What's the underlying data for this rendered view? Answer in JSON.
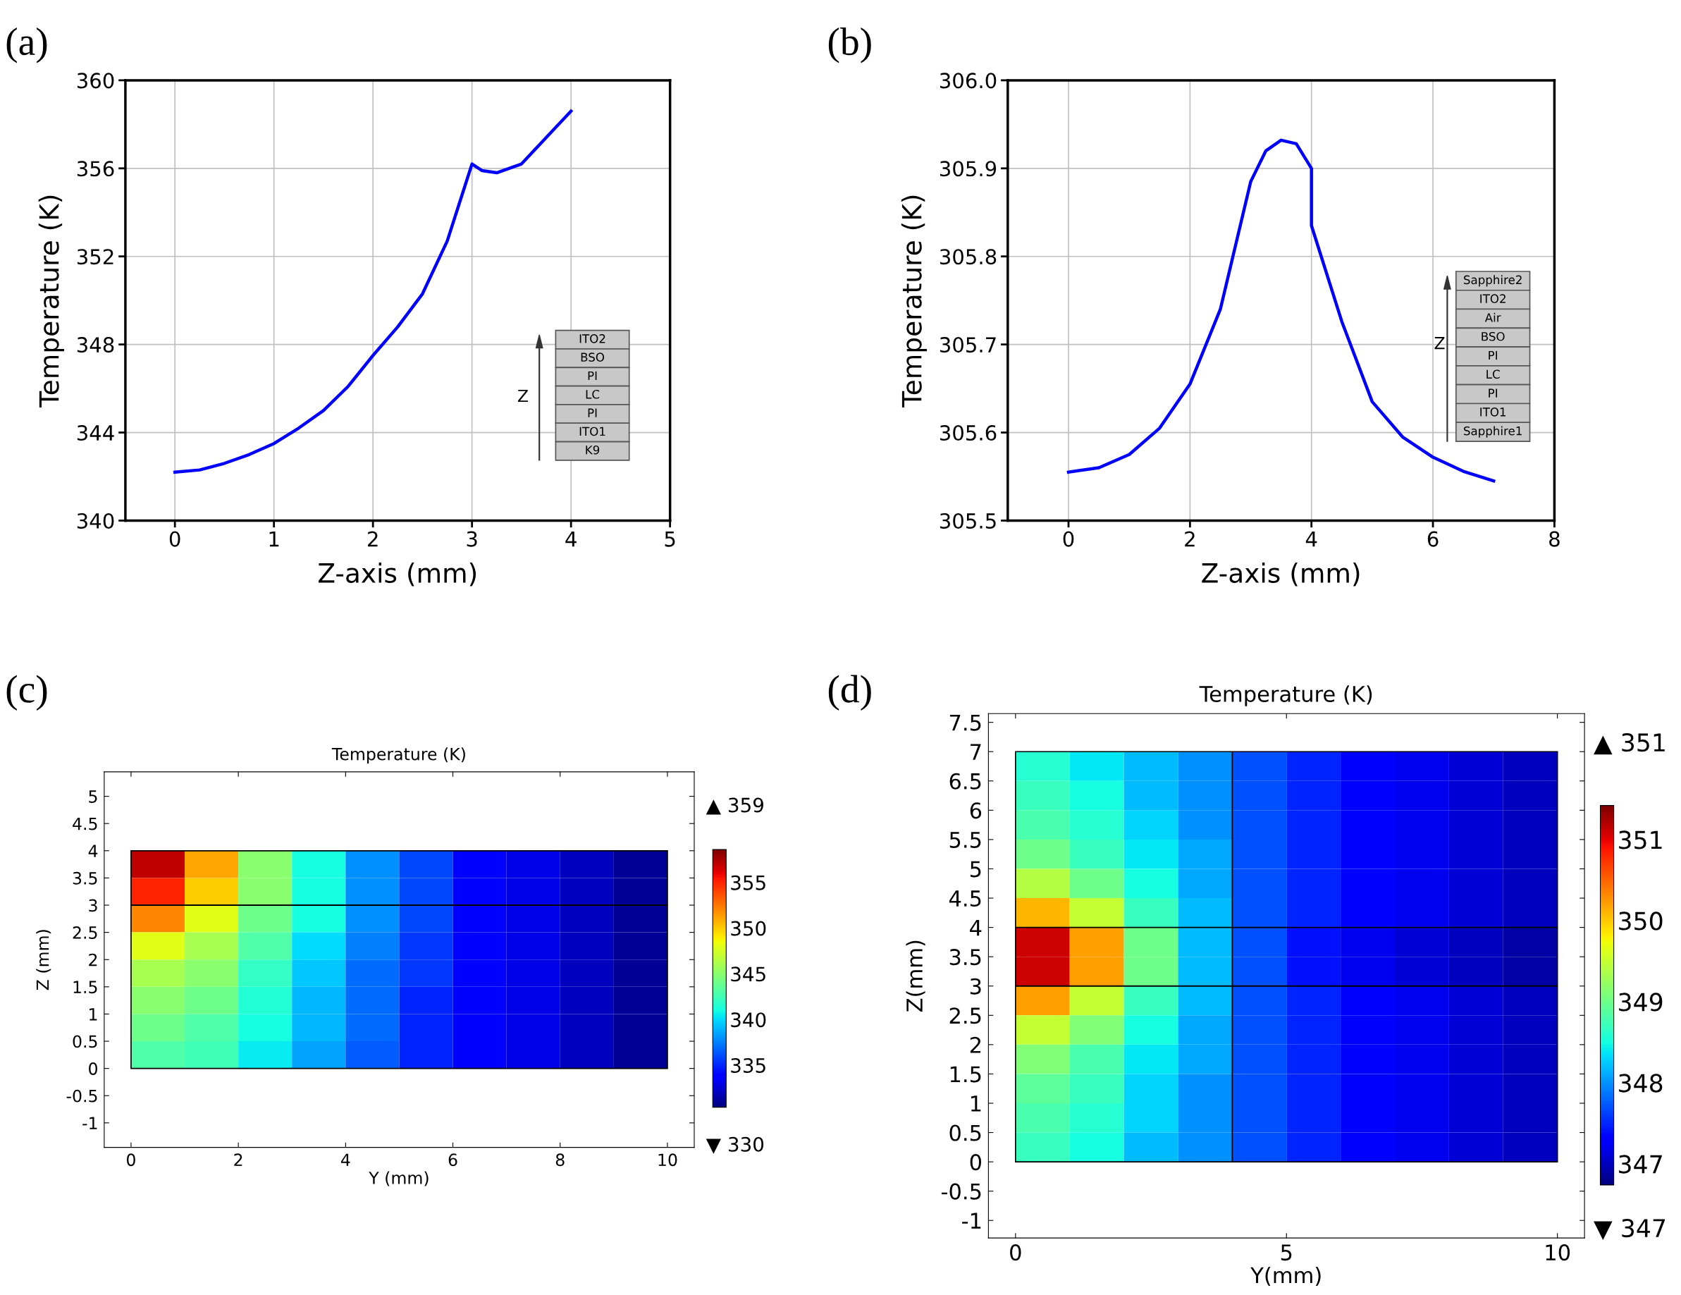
{
  "chart_data": [
    {
      "type": "line",
      "xlabel": "Z-axis (mm)",
      "ylabel": "Temperature (K)",
      "xlim": [
        -0.5,
        5
      ],
      "ylim": [
        340,
        360
      ],
      "xticks": [
        0,
        1,
        2,
        3,
        4,
        5
      ],
      "yticks": [
        340,
        344,
        348,
        352,
        356,
        360
      ],
      "grid": true,
      "legend": false,
      "marker": "none",
      "line_style": "solid",
      "annotations": [
        "(a)",
        "Z",
        "ITO2",
        "BSO",
        "PI",
        "LC",
        "PI",
        "ITO1",
        "K9"
      ],
      "series": [
        {
          "color": "#0000ff",
          "x": [
            0,
            0.25,
            0.5,
            0.75,
            1,
            1.25,
            1.5,
            1.75,
            2,
            2.25,
            2.5,
            2.75,
            3,
            3.1,
            3.25,
            3.5,
            3.75,
            4
          ],
          "values": [
            342.2,
            342.3,
            342.6,
            343.0,
            343.5,
            344.2,
            345.0,
            346.1,
            347.5,
            348.8,
            350.3,
            352.7,
            356.2,
            355.9,
            355.8,
            356.2,
            357.4,
            358.6
          ]
        }
      ]
    },
    {
      "type": "line",
      "xlabel": "Z-axis (mm)",
      "ylabel": "Temperature (K)",
      "xlim": [
        -1,
        8
      ],
      "ylim": [
        305.5,
        306.0
      ],
      "xticks": [
        0,
        2,
        4,
        6,
        8
      ],
      "yticks": [
        305.5,
        305.6,
        305.7,
        305.8,
        305.9,
        {
          "value": 306,
          "label": "306.0"
        }
      ],
      "grid": true,
      "legend": false,
      "marker": "none",
      "line_style": "solid",
      "annotations": [
        "(b)",
        "Z",
        "Sapphire2",
        "ITO2",
        "Air",
        "BSO",
        "PI",
        "LC",
        "PI",
        "ITO1",
        "Sapphire1"
      ],
      "series": [
        {
          "color": "#0000ff",
          "x": [
            0,
            0.5,
            1,
            1.5,
            2,
            2.5,
            3,
            3.25,
            3.5,
            3.75,
            4,
            4,
            4.5,
            5,
            5.5,
            6,
            6.5,
            7
          ],
          "values": [
            305.555,
            305.56,
            305.575,
            305.605,
            305.655,
            305.74,
            305.885,
            305.92,
            305.932,
            305.928,
            305.9,
            305.835,
            305.726,
            305.635,
            305.595,
            305.572,
            305.556,
            305.545
          ]
        }
      ]
    },
    {
      "type": "heatmap",
      "title": "Temperature (K)",
      "xlabel": "Y (mm)",
      "ylabel": "Z (mm)",
      "xlim": [
        -0.5,
        10.5
      ],
      "ylim": [
        -1.45,
        5.45
      ],
      "xticks": [
        0,
        2,
        4,
        6,
        8,
        10
      ],
      "yticks": [
        -1,
        -0.5,
        0,
        0.5,
        1,
        1.5,
        2,
        2.5,
        3,
        3.5,
        4,
        4.5,
        5
      ],
      "clim": [
        330.4,
        358.6
      ],
      "cticks": [
        335,
        340,
        345,
        350,
        355
      ],
      "annotations": [
        "(c)",
        "▲ 359",
        "▼ 330"
      ],
      "ref_lines": [
        {
          "axis": "y",
          "value": 3,
          "color": "#000000"
        }
      ],
      "x": [
        0.5,
        1.5,
        2.5,
        3.5,
        4.5,
        5.5,
        6.5,
        7.5,
        8.5,
        9.5
      ],
      "y": [
        3.75,
        3.25,
        2.75,
        2.25,
        1.75,
        1.25,
        0.75,
        0.25
      ],
      "cells": [
        [
          357,
          351,
          345,
          341,
          338,
          336,
          334,
          333,
          332,
          331
        ],
        [
          355,
          350,
          345,
          341,
          338,
          336,
          334,
          333,
          332,
          331
        ],
        [
          352,
          348,
          344,
          341,
          338,
          336,
          334,
          333,
          332,
          331
        ],
        [
          348,
          346,
          343,
          340,
          337.5,
          335.5,
          334,
          333,
          332,
          331
        ],
        [
          346,
          345,
          342,
          339.5,
          337,
          335.5,
          334,
          333,
          332,
          331
        ],
        [
          345,
          344,
          341.5,
          339,
          337,
          335,
          334,
          333,
          332,
          331
        ],
        [
          344,
          343,
          341,
          339,
          337,
          335,
          334,
          333,
          332,
          331
        ],
        [
          343,
          342.5,
          340.5,
          338.5,
          336.5,
          335,
          334,
          333,
          332,
          331
        ]
      ]
    },
    {
      "type": "heatmap",
      "title": "Temperature (K)",
      "xlabel": "Y(mm)",
      "ylabel": "Z(mm)",
      "xlim": [
        -0.5,
        10.5
      ],
      "ylim": [
        -1.3,
        7.65
      ],
      "xticks": [
        0,
        5,
        10
      ],
      "yticks": [
        -1,
        -0.5,
        0,
        0.5,
        1,
        1.5,
        2,
        2.5,
        3,
        3.5,
        4,
        4.5,
        5,
        5.5,
        6,
        6.5,
        7,
        7.5
      ],
      "clim": [
        346.74,
        351.42
      ],
      "cticks": [
        347,
        348,
        349,
        350,
        351
      ],
      "annotations": [
        "(d)",
        "▲ 351",
        "▼ 347"
      ],
      "ref_lines": [
        {
          "axis": "y",
          "value": 3,
          "color": "#000000"
        },
        {
          "axis": "y",
          "value": 4,
          "color": "#000000"
        },
        {
          "axis": "x",
          "value": 4,
          "color": "#000000"
        }
      ],
      "x": [
        0.5,
        1.5,
        2.5,
        3.5,
        4.5,
        5.5,
        6.5,
        7.5,
        8.5,
        9.5
      ],
      "y": [
        6.75,
        6.25,
        5.75,
        5.25,
        4.75,
        4.25,
        3.75,
        3.25,
        2.75,
        2.25,
        1.75,
        1.25,
        0.75,
        0.25
      ],
      "cells": [
        [
          348.6,
          348.4,
          348.2,
          348.0,
          347.7,
          347.5,
          347.3,
          347.2,
          347.1,
          347.0
        ],
        [
          348.7,
          348.5,
          348.2,
          348.0,
          347.7,
          347.5,
          347.3,
          347.2,
          347.1,
          347.0
        ],
        [
          348.8,
          348.6,
          348.3,
          348.0,
          347.7,
          347.5,
          347.3,
          347.2,
          347.1,
          347.0
        ],
        [
          349.0,
          348.7,
          348.4,
          348.1,
          347.7,
          347.5,
          347.3,
          347.2,
          347.1,
          347.0
        ],
        [
          349.4,
          349.0,
          348.5,
          348.1,
          347.7,
          347.5,
          347.3,
          347.2,
          347.1,
          347.0
        ],
        [
          350.1,
          349.5,
          348.7,
          348.2,
          347.7,
          347.5,
          347.3,
          347.2,
          347.1,
          347.0
        ],
        [
          351.1,
          350.2,
          349.0,
          348.2,
          347.7,
          347.4,
          347.2,
          347.1,
          347.0,
          346.9
        ],
        [
          351.1,
          350.2,
          349.0,
          348.2,
          347.7,
          347.4,
          347.2,
          347.1,
          347.0,
          346.9
        ],
        [
          350.2,
          349.5,
          348.7,
          348.2,
          347.7,
          347.5,
          347.3,
          347.2,
          347.1,
          347.0
        ],
        [
          349.5,
          349.1,
          348.5,
          348.1,
          347.7,
          347.5,
          347.3,
          347.2,
          347.1,
          347.0
        ],
        [
          349.1,
          348.8,
          348.4,
          348.1,
          347.7,
          347.5,
          347.3,
          347.2,
          347.1,
          347.0
        ],
        [
          348.9,
          348.7,
          348.3,
          348.0,
          347.7,
          347.5,
          347.3,
          347.2,
          347.1,
          347.0
        ],
        [
          348.8,
          348.6,
          348.3,
          348.0,
          347.7,
          347.5,
          347.3,
          347.2,
          347.1,
          347.0
        ],
        [
          348.7,
          348.5,
          348.2,
          348.0,
          347.7,
          347.5,
          347.3,
          347.2,
          347.1,
          347.0
        ]
      ]
    }
  ]
}
